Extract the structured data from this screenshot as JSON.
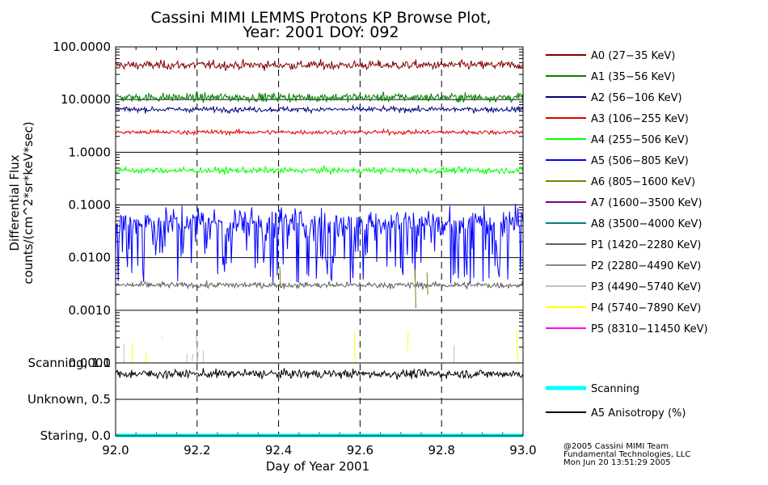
{
  "title": {
    "line1": "Cassini MIMI LEMMS Protons KP Browse Plot,",
    "line2": "Year: 2001 DOY: 092"
  },
  "footer": {
    "line1": "@2005 Cassini MIMI Team",
    "line2": "Fundamental Technologies, LLC",
    "line3": "Mon Jun 20 13:51:29 2005"
  },
  "chart_data": [
    {
      "type": "line",
      "title": "Cassini MIMI LEMMS Protons KP Browse Plot, Year: 2001 DOY: 092",
      "ylabel_line1": "Differential Flux",
      "ylabel_line2": "counts/(cm^2*sr*keV*sec)",
      "yscale": "log",
      "ylim": [
        0.0001,
        100
      ],
      "yticks": [
        100,
        10,
        1,
        0.1,
        0.01,
        0.001,
        0.0001
      ],
      "ytick_labels": [
        "100.0000",
        "10.0000",
        "1.0000",
        "0.1000",
        "0.0100",
        "0.0010",
        "0.0001"
      ],
      "xlim": [
        92.0,
        93.0
      ],
      "grid": "horizontal at decades, dashed vertical at x ticks",
      "series": [
        {
          "name": "A0 (27−35 KeV)",
          "color": "#800000",
          "typical": 45,
          "spread": 0.1,
          "noise": "normal"
        },
        {
          "name": "A1 (35−56 KeV)",
          "color": "#008000",
          "typical": 11,
          "spread": 0.1,
          "noise": "normal"
        },
        {
          "name": "A2 (56−106 KeV)",
          "color": "#000080",
          "typical": 6.5,
          "spread": 0.06,
          "noise": "normal"
        },
        {
          "name": "A3 (106−255 KeV)",
          "color": "#e00000",
          "typical": 2.4,
          "spread": 0.05,
          "noise": "normal"
        },
        {
          "name": "A4 (255−506 KeV)",
          "color": "#00ff00",
          "typical": 0.45,
          "spread": 0.07,
          "noise": "normal"
        },
        {
          "name": "A5 (506−805 KeV)",
          "color": "#0000ff",
          "typical": 0.05,
          "spread": 0.3,
          "noise": "spiky"
        },
        {
          "name": "A6 (805−1600 KeV)",
          "color": "#808000",
          "typical": 0.004,
          "spread": 0.5,
          "noise": "sparse"
        },
        {
          "name": "A7 (1600−3500 KeV)",
          "color": "#800080",
          "typical": null,
          "spread": 0,
          "noise": "none"
        },
        {
          "name": "A8 (3500−4000 KeV)",
          "color": "#008080",
          "typical": null,
          "spread": 0,
          "noise": "none"
        },
        {
          "name": "P1 (1420−2280 KeV)",
          "color": "#606060",
          "typical": 0.003,
          "spread": 0.07,
          "noise": "normal"
        },
        {
          "name": "P2 (2280−4490 KeV)",
          "color": "#888888",
          "typical": null,
          "spread": 0,
          "noise": "none"
        },
        {
          "name": "P3 (4490−5740 KeV)",
          "color": "#c0c0c0",
          "typical": 0.0001,
          "spread": 0.2,
          "noise": "sparse"
        },
        {
          "name": "P4 (5740−7890 KeV)",
          "color": "#ffff00",
          "typical": 0.0001,
          "spread": 0.2,
          "noise": "sparse"
        },
        {
          "name": "P5 (8310−11450 KeV)",
          "color": "#ff00ff",
          "typical": null,
          "spread": 0,
          "noise": "none"
        }
      ]
    },
    {
      "type": "line",
      "ylim": [
        0.0,
        1.0
      ],
      "yticks": [
        1.0,
        0.5,
        0.0
      ],
      "ytick_labels": [
        "Scanning, 1.0",
        "Unknown, 0.5",
        "Staring, 0.0"
      ],
      "xlim": [
        92.0,
        93.0
      ],
      "xticks": [
        92.0,
        92.2,
        92.4,
        92.6,
        92.8,
        93.0
      ],
      "xtick_labels": [
        "92.0",
        "92.2",
        "92.4",
        "92.6",
        "92.8",
        "93.0"
      ],
      "xlabel": "Day of Year 2001",
      "series": [
        {
          "name": "Scanning",
          "color": "#00ffff",
          "value": 0.0
        },
        {
          "name": "A5 Anisotropy (%)",
          "color": "#000000",
          "typical": 0.85,
          "amplitude": 0.07
        }
      ]
    }
  ]
}
